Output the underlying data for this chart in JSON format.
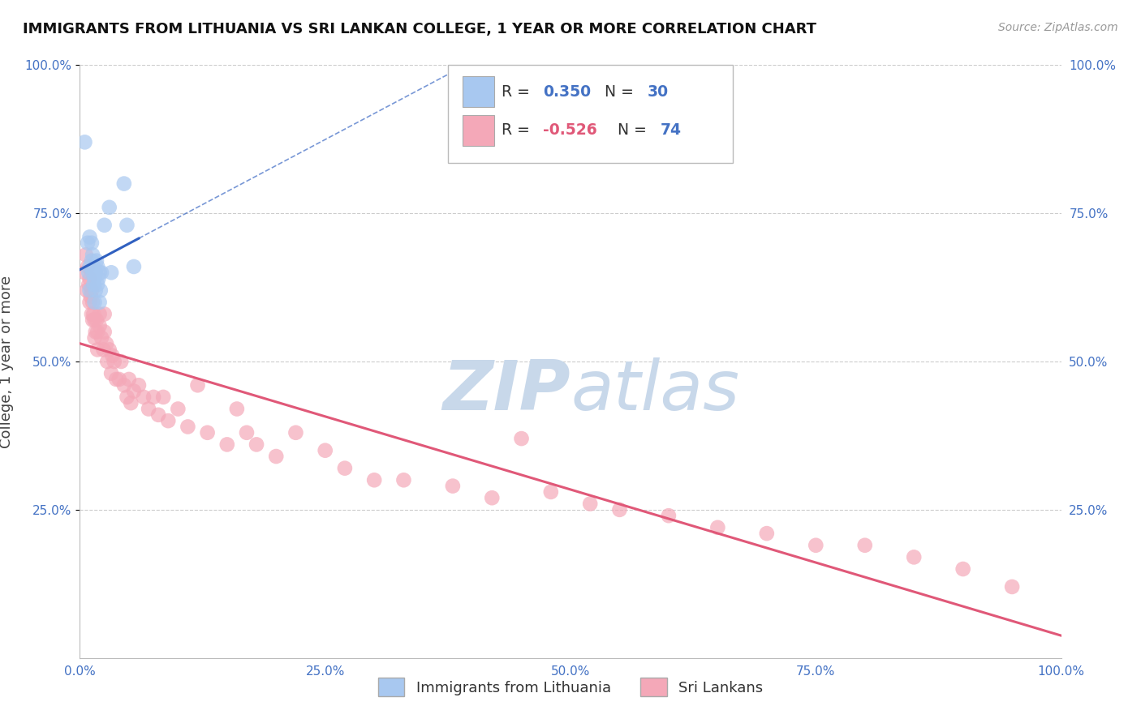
{
  "title": "IMMIGRANTS FROM LITHUANIA VS SRI LANKAN COLLEGE, 1 YEAR OR MORE CORRELATION CHART",
  "source": "Source: ZipAtlas.com",
  "ylabel": "College, 1 year or more",
  "xlim": [
    0.0,
    1.0
  ],
  "ylim": [
    0.0,
    1.0
  ],
  "xticks": [
    0.0,
    0.25,
    0.5,
    0.75,
    1.0
  ],
  "yticks": [
    0.25,
    0.5,
    0.75,
    1.0
  ],
  "xtick_labels": [
    "0.0%",
    "25.0%",
    "50.0%",
    "75.0%",
    "100.0%"
  ],
  "ytick_labels": [
    "25.0%",
    "50.0%",
    "75.0%",
    "100.0%"
  ],
  "right_ytick_labels": [
    "100.0%",
    "75.0%",
    "50.0%",
    "25.0%"
  ],
  "blue_color": "#a8c8f0",
  "pink_color": "#f4a8b8",
  "blue_line_color": "#3060c0",
  "pink_line_color": "#e05878",
  "background_color": "#ffffff",
  "grid_color": "#cccccc",
  "watermark_color": "#c8d8ea",
  "blue_scatter_x": [
    0.005,
    0.008,
    0.009,
    0.01,
    0.01,
    0.01,
    0.012,
    0.012,
    0.013,
    0.013,
    0.014,
    0.014,
    0.015,
    0.015,
    0.016,
    0.016,
    0.017,
    0.018,
    0.018,
    0.019,
    0.02,
    0.02,
    0.021,
    0.022,
    0.025,
    0.03,
    0.032,
    0.045,
    0.048,
    0.055
  ],
  "blue_scatter_y": [
    0.87,
    0.7,
    0.65,
    0.62,
    0.66,
    0.71,
    0.67,
    0.7,
    0.65,
    0.68,
    0.63,
    0.66,
    0.6,
    0.64,
    0.62,
    0.65,
    0.67,
    0.63,
    0.66,
    0.64,
    0.6,
    0.65,
    0.62,
    0.65,
    0.73,
    0.76,
    0.65,
    0.8,
    0.73,
    0.66
  ],
  "pink_scatter_x": [
    0.005,
    0.006,
    0.007,
    0.008,
    0.009,
    0.01,
    0.01,
    0.011,
    0.012,
    0.012,
    0.013,
    0.013,
    0.014,
    0.015,
    0.015,
    0.016,
    0.017,
    0.018,
    0.018,
    0.02,
    0.02,
    0.022,
    0.024,
    0.025,
    0.025,
    0.027,
    0.028,
    0.03,
    0.032,
    0.033,
    0.035,
    0.037,
    0.04,
    0.042,
    0.045,
    0.048,
    0.05,
    0.052,
    0.055,
    0.06,
    0.065,
    0.07,
    0.075,
    0.08,
    0.085,
    0.09,
    0.1,
    0.11,
    0.12,
    0.13,
    0.15,
    0.16,
    0.17,
    0.18,
    0.2,
    0.22,
    0.25,
    0.27,
    0.3,
    0.33,
    0.38,
    0.42,
    0.45,
    0.48,
    0.52,
    0.55,
    0.6,
    0.65,
    0.7,
    0.75,
    0.8,
    0.85,
    0.9,
    0.95
  ],
  "pink_scatter_y": [
    0.65,
    0.68,
    0.62,
    0.66,
    0.63,
    0.6,
    0.64,
    0.61,
    0.58,
    0.62,
    0.57,
    0.6,
    0.58,
    0.54,
    0.57,
    0.55,
    0.57,
    0.52,
    0.55,
    0.58,
    0.56,
    0.54,
    0.52,
    0.55,
    0.58,
    0.53,
    0.5,
    0.52,
    0.48,
    0.51,
    0.5,
    0.47,
    0.47,
    0.5,
    0.46,
    0.44,
    0.47,
    0.43,
    0.45,
    0.46,
    0.44,
    0.42,
    0.44,
    0.41,
    0.44,
    0.4,
    0.42,
    0.39,
    0.46,
    0.38,
    0.36,
    0.42,
    0.38,
    0.36,
    0.34,
    0.38,
    0.35,
    0.32,
    0.3,
    0.3,
    0.29,
    0.27,
    0.37,
    0.28,
    0.26,
    0.25,
    0.24,
    0.22,
    0.21,
    0.19,
    0.19,
    0.17,
    0.15,
    0.12
  ]
}
